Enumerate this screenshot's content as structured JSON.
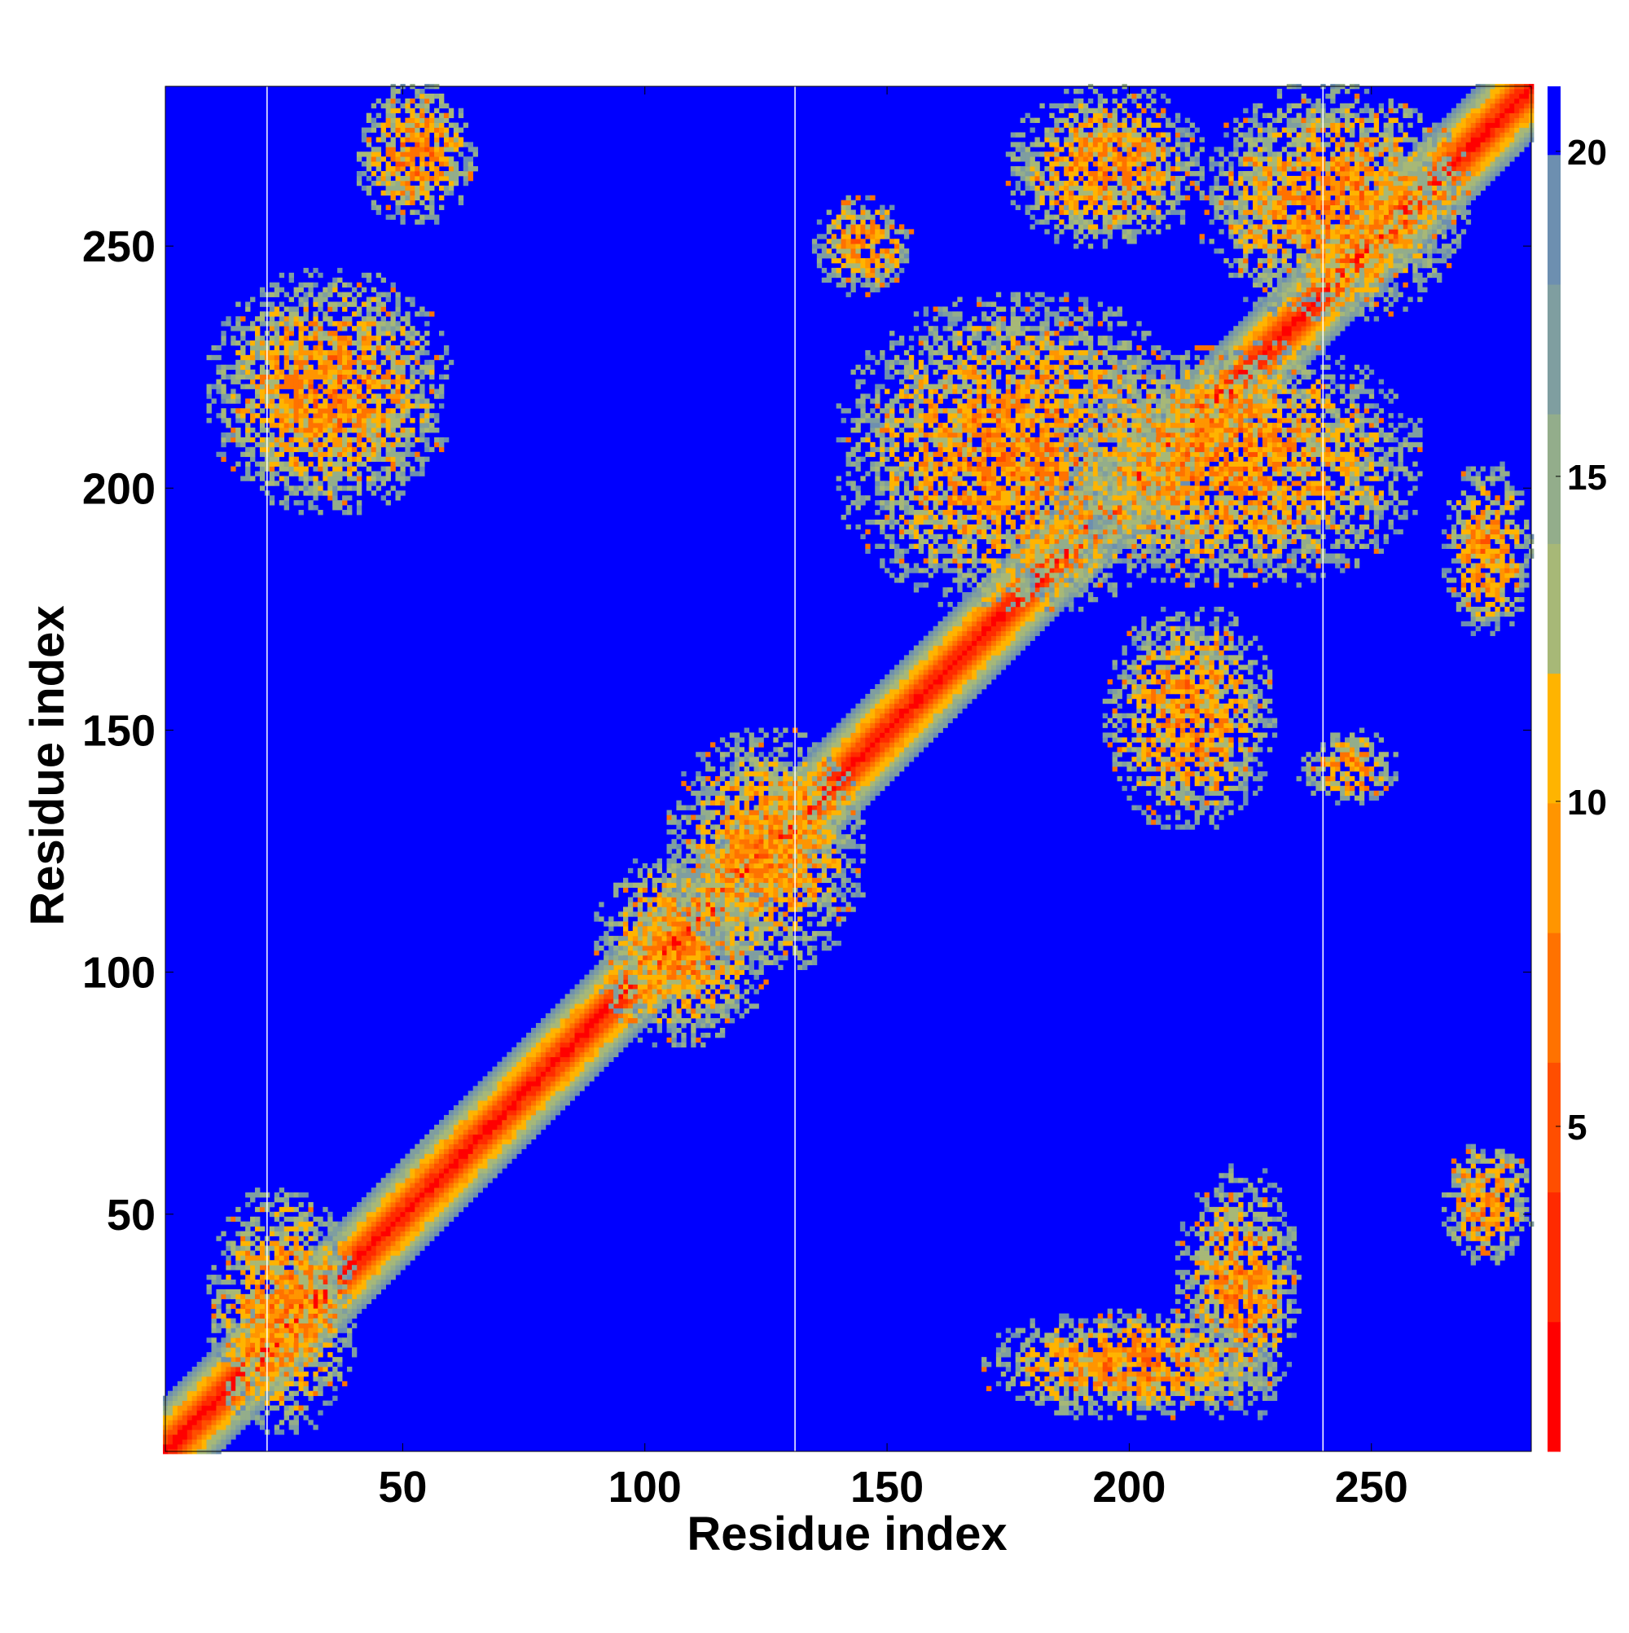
{
  "chart_data": {
    "type": "heatmap",
    "title": "",
    "xlabel": "Residue index",
    "ylabel": "Residue index",
    "n": 283,
    "xlim": [
      1,
      283
    ],
    "ylim": [
      1,
      283
    ],
    "xticks": [
      50,
      100,
      150,
      200,
      250
    ],
    "yticks": [
      50,
      100,
      150,
      200,
      250
    ],
    "segment_boundaries": [
      22,
      131,
      240
    ],
    "colorbar": {
      "min": 0,
      "max": 21,
      "ticks": [
        5,
        10,
        15,
        20
      ],
      "colors": [
        "#ff0000",
        "#ff2a00",
        "#ff4e00",
        "#ff7200",
        "#ff9500",
        "#ffb400",
        "#a7b877",
        "#93ad8b",
        "#7f9ea0",
        "#6d8fb0",
        "#0000ff"
      ]
    },
    "background_color": "#0000ff",
    "contact_regions": [
      {
        "x": [
          10,
          40
        ],
        "y": [
          5,
          55
        ],
        "note": ""
      },
      {
        "x": [
          210,
          235
        ],
        "y": [
          8,
          60
        ]
      },
      {
        "x": [
          170,
          230
        ],
        "y": [
          8,
          30
        ]
      },
      {
        "x": [
          265,
          283
        ],
        "y": [
          40,
          65
        ]
      },
      {
        "x": [
          90,
          125
        ],
        "y": [
          85,
          125
        ]
      },
      {
        "x": [
          105,
          145
        ],
        "y": [
          100,
          150
        ]
      },
      {
        "x": [
          195,
          230
        ],
        "y": [
          130,
          175
        ]
      },
      {
        "x": [
          235,
          255
        ],
        "y": [
          135,
          150
        ]
      },
      {
        "x": [
          140,
          215
        ],
        "y": [
          175,
          240
        ]
      },
      {
        "x": [
          185,
          260
        ],
        "y": [
          180,
          230
        ]
      },
      {
        "x": [
          265,
          283
        ],
        "y": [
          170,
          205
        ]
      },
      {
        "x": [
          135,
          155
        ],
        "y": [
          240,
          260
        ]
      },
      {
        "x": [
          10,
          60
        ],
        "y": [
          195,
          245
        ]
      },
      {
        "x": [
          40,
          65
        ],
        "y": [
          255,
          283
        ]
      },
      {
        "x": [
          175,
          215
        ],
        "y": [
          250,
          283
        ]
      },
      {
        "x": [
          215,
          270
        ],
        "y": [
          235,
          283
        ]
      }
    ]
  }
}
